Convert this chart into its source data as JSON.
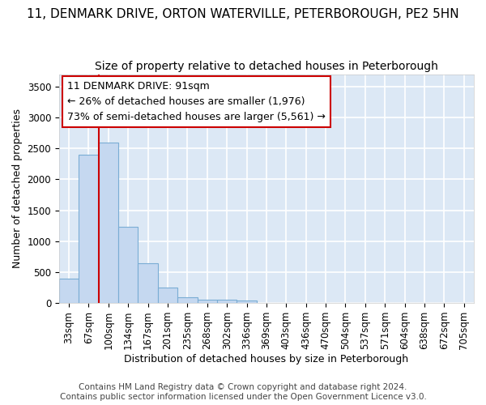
{
  "title_line1": "11, DENMARK DRIVE, ORTON WATERVILLE, PETERBOROUGH, PE2 5HN",
  "title_line2": "Size of property relative to detached houses in Peterborough",
  "xlabel": "Distribution of detached houses by size in Peterborough",
  "ylabel": "Number of detached properties",
  "footer_line1": "Contains HM Land Registry data © Crown copyright and database right 2024.",
  "footer_line2": "Contains public sector information licensed under the Open Government Licence v3.0.",
  "bin_labels": [
    "33sqm",
    "67sqm",
    "100sqm",
    "134sqm",
    "167sqm",
    "201sqm",
    "235sqm",
    "268sqm",
    "302sqm",
    "336sqm",
    "369sqm",
    "403sqm",
    "436sqm",
    "470sqm",
    "504sqm",
    "537sqm",
    "571sqm",
    "604sqm",
    "638sqm",
    "672sqm",
    "705sqm"
  ],
  "bar_values": [
    390,
    2400,
    2600,
    1230,
    640,
    255,
    90,
    60,
    55,
    40,
    0,
    0,
    0,
    0,
    0,
    0,
    0,
    0,
    0,
    0,
    0
  ],
  "bar_color": "#c5d8f0",
  "bar_edge_color": "#7aadd4",
  "background_color": "#dce8f5",
  "grid_color": "#ffffff",
  "annotation_text_line1": "11 DENMARK DRIVE: 91sqm",
  "annotation_text_line2": "← 26% of detached houses are smaller (1,976)",
  "annotation_text_line3": "73% of semi-detached houses are larger (5,561) →",
  "annotation_box_color": "#ffffff",
  "annotation_box_edge_color": "#cc0000",
  "vline_color": "#cc0000",
  "vline_x": 2.0,
  "ylim": [
    0,
    3700
  ],
  "yticks": [
    0,
    500,
    1000,
    1500,
    2000,
    2500,
    3000,
    3500
  ],
  "title_fontsize": 11,
  "subtitle_fontsize": 10,
  "label_fontsize": 9,
  "tick_fontsize": 8.5,
  "annotation_fontsize": 9,
  "footer_fontsize": 7.5
}
